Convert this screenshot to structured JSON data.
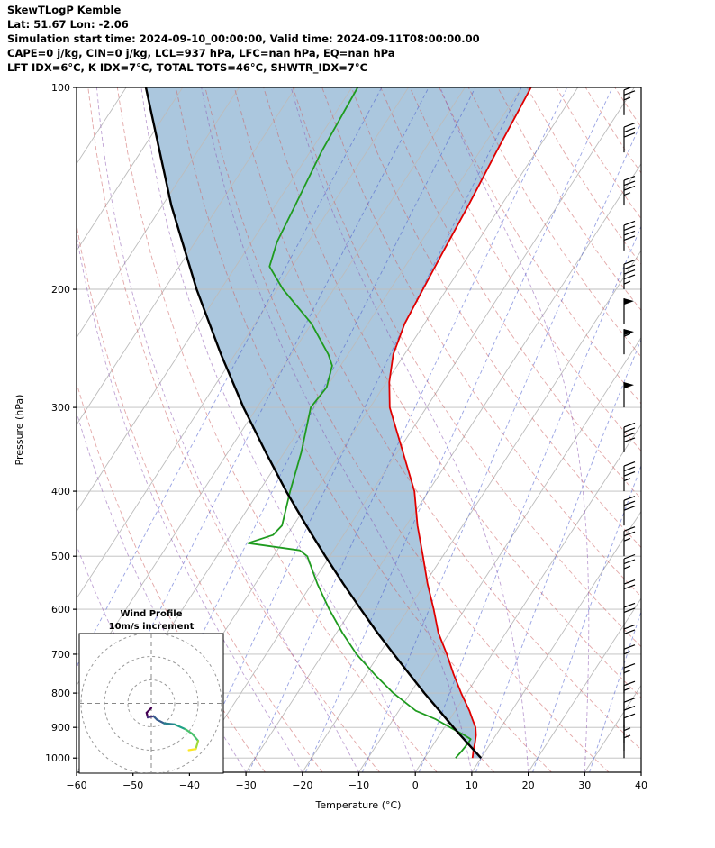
{
  "header": {
    "line1": "SkewTLogP Kemble",
    "line2": "Lat: 51.67   Lon: -2.06",
    "line3": "Simulation start time: 2024-09-10_00:00:00, Valid time: 2024-09-11T08:00:00.00",
    "line4": "CAPE=0 j/kg, CIN=0 j/kg, LCL=937 hPa, LFC=nan hPa, EQ=nan hPa",
    "line5": "LFT IDX=6°C, K IDX=7°C, TOTAL TOTS=46°C, SHWTR_IDX=7°C"
  },
  "chart_data": {
    "type": "skewt_logp",
    "title": "SkewTLogP Kemble",
    "station": "Kemble",
    "lat": 51.67,
    "lon": -2.06,
    "indices": {
      "CAPE_jkg": 0,
      "CIN_jkg": 0,
      "LCL_hPa": 937,
      "LFC_hPa": "nan",
      "EQ_hPa": "nan",
      "LFT_IDX_C": 6,
      "K_IDX_C": 7,
      "TOTAL_TOTS_C": 46,
      "SHWTR_IDX_C": 7
    },
    "x_axis": {
      "label": "Temperature (°C)",
      "ticks": [
        -60,
        -50,
        -40,
        -30,
        -20,
        -10,
        0,
        10,
        20,
        30,
        40
      ],
      "range": [
        -60,
        40
      ]
    },
    "y_axis": {
      "label": "Pressure (hPa)",
      "ticks": [
        100,
        200,
        300,
        400,
        500,
        600,
        700,
        800,
        900,
        1000
      ],
      "range": [
        100,
        1050
      ],
      "scale": "log"
    },
    "temperature_profile": {
      "pressure_hpa": [
        1000,
        975,
        950,
        925,
        900,
        875,
        850,
        800,
        750,
        700,
        650,
        600,
        550,
        500,
        450,
        400,
        350,
        300,
        275,
        250,
        225,
        200,
        175,
        150,
        125,
        100
      ],
      "temp_c": [
        8.5,
        7.8,
        7.2,
        6.5,
        5.5,
        4.0,
        2.5,
        -1.0,
        -4.5,
        -8.0,
        -12.0,
        -15.5,
        -19.5,
        -23.5,
        -28.0,
        -32.5,
        -39.0,
        -46.5,
        -49.5,
        -52.0,
        -53.5,
        -54.2,
        -55.0,
        -55.8,
        -57.0,
        -58.3
      ]
    },
    "dewpoint_profile": {
      "pressure_hpa": [
        1000,
        975,
        950,
        937,
        925,
        900,
        875,
        850,
        800,
        750,
        700,
        650,
        600,
        550,
        500,
        490,
        478,
        465,
        450,
        400,
        350,
        300,
        280,
        260,
        250,
        225,
        200,
        185,
        170,
        150,
        125,
        100
      ],
      "temp_c": [
        5.5,
        5.8,
        6.0,
        6.0,
        4.5,
        1.0,
        -2.5,
        -7.0,
        -13.0,
        -18.5,
        -24.0,
        -29.0,
        -34.0,
        -39.0,
        -44.0,
        -46.0,
        -56.0,
        -52.5,
        -52.0,
        -54.5,
        -57.0,
        -60.5,
        -60.0,
        -61.5,
        -63.5,
        -70.0,
        -79.0,
        -84.0,
        -85.5,
        -86.5,
        -88.0,
        -89.0
      ]
    },
    "parcel_profile": {
      "pressure_hpa": [
        1000,
        950,
        900,
        850,
        800,
        750,
        700,
        650,
        600,
        550,
        500,
        450,
        400,
        350,
        300,
        250,
        200,
        150,
        100
      ],
      "temp_c": [
        10.0,
        5.9,
        1.6,
        -2.8,
        -7.5,
        -12.3,
        -17.4,
        -22.8,
        -28.4,
        -34.4,
        -40.8,
        -47.7,
        -55.2,
        -63.3,
        -72.4,
        -82.5,
        -94.3,
        -108.4,
        -126.5
      ]
    },
    "wind_barbs": {
      "pressure_hpa": [
        1000,
        975,
        950,
        925,
        900,
        850,
        800,
        750,
        700,
        650,
        600,
        550,
        500,
        450,
        400,
        350,
        300,
        250,
        225,
        200,
        175,
        150,
        125,
        110
      ],
      "speed_kt": [
        5,
        5,
        10,
        10,
        10,
        15,
        15,
        15,
        20,
        20,
        20,
        25,
        25,
        30,
        35,
        40,
        50,
        55,
        50,
        45,
        40,
        35,
        30,
        25
      ]
    },
    "hodograph": {
      "title": "Wind Profile",
      "subtitle": "10m/s increment",
      "ring_interval_ms": 10,
      "rings_ms": [
        10,
        20,
        30
      ],
      "trace_u_ms": [
        0,
        -2,
        -1.5,
        1,
        2.5,
        5.5,
        10,
        14.5,
        17.5,
        20,
        19,
        16
      ],
      "trace_v_ms": [
        -2,
        -4,
        -6,
        -5.5,
        -7,
        -8.5,
        -9,
        -11,
        -13,
        -16,
        -19.5,
        -20
      ]
    },
    "background_lines": {
      "isotherms_c": {
        "min": -160,
        "max": 40,
        "step": 10
      },
      "dry_adiabats_theta_c": {
        "min": -30,
        "max": 180,
        "step": 10
      },
      "moist_adiabats_c": {
        "min": -60,
        "max": 30,
        "step": 10
      },
      "mixing_ratio_dewpoints_c": [
        -70,
        -60,
        -50,
        -40,
        -30,
        -20,
        -10,
        0,
        10,
        20,
        30
      ]
    },
    "colors": {
      "temperature": "#e00000",
      "dewpoint": "#1f9b1f",
      "parcel": "#000000",
      "cape_fill": "#abc7de",
      "isotherm": "#bcbcbc",
      "grid": "#bcbcbc",
      "dry_adiabat": "#cc5f5f",
      "moist_adiabat": "#8a55b0",
      "mixing_line": "#4455cc",
      "barb": "#000000"
    }
  }
}
